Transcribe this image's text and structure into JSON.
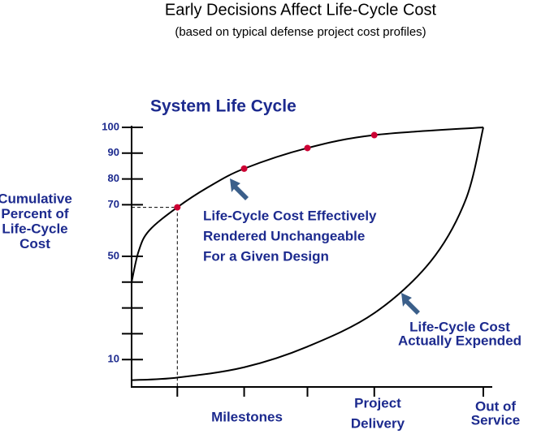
{
  "chart_data": {
    "type": "line",
    "title": "Early Decisions Affect Life-Cycle Cost",
    "subtitle": "(based on typical defense project cost profiles)",
    "heading": "System Life Cycle",
    "ylabel": [
      "Cumulative",
      "Percent of",
      "Life-Cycle",
      "Cost"
    ],
    "xlim": [
      0,
      100
    ],
    "xticks": [
      13,
      32,
      50,
      69,
      100
    ],
    "x_labels": {
      "milestones": [
        "Milestones"
      ],
      "delivery": [
        "Project",
        "Delivery"
      ],
      "service": [
        "Out of",
        "Service"
      ]
    },
    "ylim": [
      0,
      100
    ],
    "yticks": [
      10,
      50,
      70,
      80,
      90,
      100
    ],
    "minor_yticks": [
      20,
      30,
      40
    ],
    "committed": {
      "x": [
        0,
        2,
        5,
        13,
        22,
        32,
        50,
        69,
        100
      ],
      "values": [
        40,
        52,
        60,
        69,
        77,
        84,
        92,
        97,
        100
      ],
      "color": "#000000"
    },
    "expended": {
      "x": [
        0,
        13,
        32,
        50,
        69,
        85,
        95,
        100
      ],
      "values": [
        2,
        3,
        7,
        15,
        28,
        48,
        72,
        100
      ],
      "color": "#000000"
    },
    "milestone_points": {
      "x": [
        13,
        32,
        50,
        69
      ],
      "values": [
        69,
        84,
        92,
        97
      ],
      "color": "#cc0033"
    },
    "annotations": {
      "committed": [
        "Life-Cycle Cost Effectively",
        "Rendered Unchangeable",
        "For a Given Design"
      ],
      "expended": [
        "Life-Cycle Cost",
        "Actually Expended"
      ]
    }
  }
}
